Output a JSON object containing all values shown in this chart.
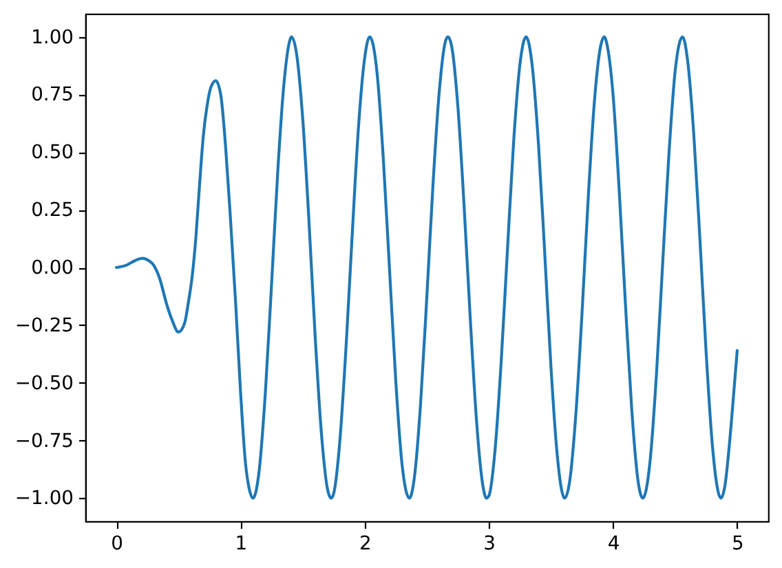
{
  "chart_data": {
    "type": "line",
    "x": [
      0.0,
      0.08,
      0.15,
      0.21,
      0.26,
      0.3,
      0.35,
      0.4,
      0.45,
      0.5,
      0.55,
      0.58,
      0.61,
      0.64,
      0.67,
      0.7,
      0.73,
      0.76,
      0.8,
      0.84,
      0.88,
      0.92,
      0.96,
      1.0,
      1.04,
      1.07,
      1.1,
      1.15,
      1.2,
      1.25,
      1.3,
      1.35,
      1.4,
      1.41,
      1.45,
      1.5,
      1.55,
      1.6,
      1.65,
      1.7,
      1.73,
      1.75,
      1.8,
      1.85,
      1.9,
      1.95,
      2.0,
      2.04,
      2.1,
      2.15,
      2.2,
      2.25,
      2.3,
      2.36,
      2.4,
      2.45,
      2.5,
      2.55,
      2.6,
      2.65,
      2.67,
      2.7,
      2.75,
      2.8,
      2.85,
      2.9,
      2.95,
      2.98,
      3.0,
      3.05,
      3.1,
      3.15,
      3.2,
      3.25,
      3.3,
      3.35,
      3.4,
      3.45,
      3.5,
      3.55,
      3.61,
      3.65,
      3.7,
      3.75,
      3.8,
      3.85,
      3.9,
      3.93,
      3.95,
      4.0,
      4.05,
      4.1,
      4.15,
      4.2,
      4.24,
      4.3,
      4.35,
      4.4,
      4.45,
      4.5,
      4.56,
      4.6,
      4.65,
      4.7,
      4.75,
      4.8,
      4.85,
      4.87,
      4.9,
      4.95,
      5.0
    ],
    "series": [
      {
        "color": "#1f77b4",
        "values": [
          0.0,
          0.01,
          0.03,
          0.04,
          0.03,
          0.01,
          -0.05,
          -0.15,
          -0.23,
          -0.28,
          -0.24,
          -0.15,
          -0.04,
          0.13,
          0.36,
          0.57,
          0.7,
          0.78,
          0.81,
          0.75,
          0.52,
          0.2,
          -0.15,
          -0.54,
          -0.85,
          -0.96,
          -1.0,
          -0.88,
          -0.54,
          -0.07,
          0.42,
          0.8,
          0.99,
          1.0,
          0.93,
          0.65,
          0.21,
          -0.29,
          -0.71,
          -0.96,
          -1.0,
          -0.98,
          -0.75,
          -0.34,
          0.15,
          0.61,
          0.91,
          1.0,
          0.84,
          0.47,
          -0.01,
          -0.49,
          -0.85,
          -1.0,
          -0.91,
          -0.59,
          -0.13,
          0.36,
          0.76,
          0.98,
          1.0,
          0.96,
          0.7,
          0.27,
          -0.22,
          -0.66,
          -0.94,
          -1.0,
          -0.99,
          -0.79,
          -0.4,
          0.08,
          0.55,
          0.88,
          1.0,
          0.87,
          0.53,
          0.06,
          -0.43,
          -0.81,
          -1.0,
          -0.93,
          -0.64,
          -0.2,
          0.3,
          0.72,
          0.96,
          1.0,
          0.97,
          0.75,
          0.33,
          -0.16,
          -0.61,
          -0.92,
          -1.0,
          -0.83,
          -0.46,
          0.02,
          0.49,
          0.85,
          1.0,
          0.9,
          0.58,
          0.12,
          -0.37,
          -0.77,
          -0.98,
          -1.0,
          -0.95,
          -0.69,
          -0.36
        ]
      }
    ],
    "xlim": [
      -0.25,
      5.25
    ],
    "ylim": [
      -1.1,
      1.1
    ],
    "xticks": [
      0,
      1,
      2,
      3,
      4,
      5
    ],
    "yticks": [
      {
        "value": -1,
        "label": "−1.00"
      },
      {
        "value": -0.75,
        "label": "−0.75"
      },
      {
        "value": -0.5,
        "label": "−0.50"
      },
      {
        "value": -0.25,
        "label": "−0.25"
      },
      {
        "value": 0,
        "label": "0.00"
      },
      {
        "value": 0.25,
        "label": "0.25"
      },
      {
        "value": 0.5,
        "label": "0.50"
      },
      {
        "value": 0.75,
        "label": "0.75"
      },
      {
        "value": 1,
        "label": "1.00"
      }
    ]
  }
}
